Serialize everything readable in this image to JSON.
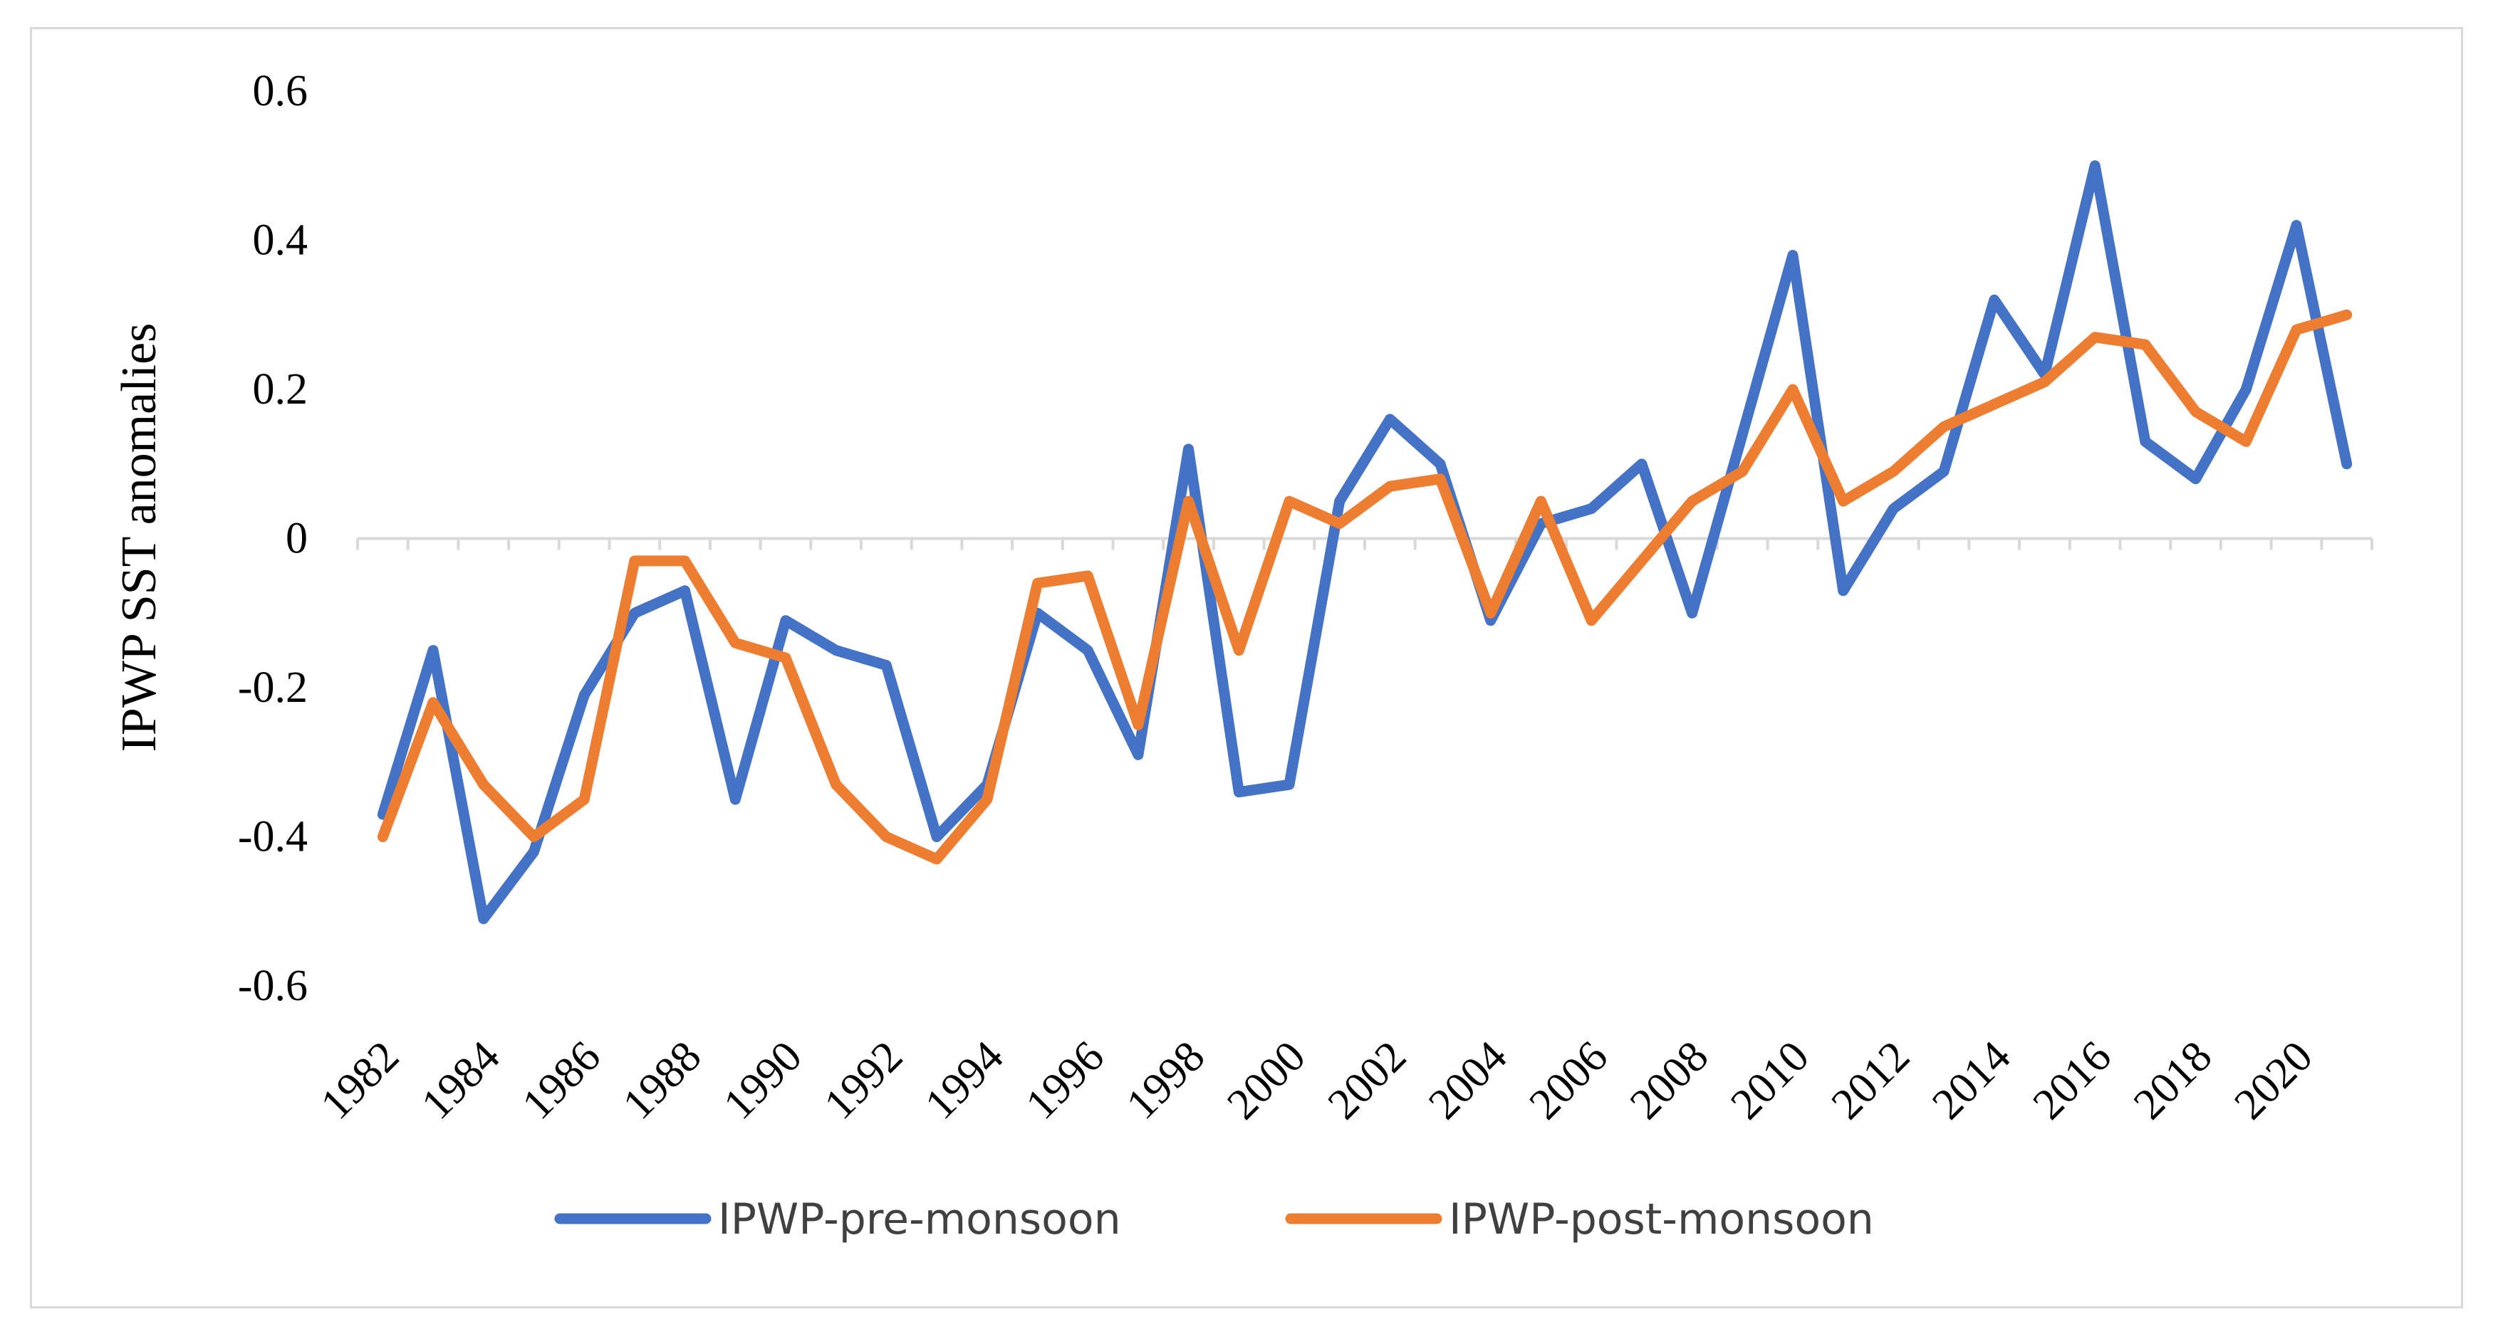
{
  "chart_data": {
    "type": "line",
    "title": "",
    "xlabel": "",
    "ylabel": "IPWP SST anomalies",
    "ylim": [
      -0.6,
      0.6
    ],
    "yticks": [
      -0.6,
      -0.4,
      -0.2,
      0,
      0.2,
      0.4,
      0.6
    ],
    "ytick_labels": [
      "-0.6",
      "-0.4",
      "-0.2",
      "0",
      "0.2",
      "0.4",
      "0.6"
    ],
    "x": [
      1982,
      1983,
      1984,
      1985,
      1986,
      1987,
      1988,
      1989,
      1990,
      1991,
      1992,
      1993,
      1994,
      1995,
      1996,
      1997,
      1998,
      1999,
      2000,
      2001,
      2002,
      2003,
      2004,
      2005,
      2006,
      2007,
      2008,
      2009,
      2010,
      2011,
      2012,
      2013,
      2014,
      2015,
      2016,
      2017,
      2018,
      2019,
      2020,
      2021
    ],
    "xtick_labels": [
      "1982",
      "1984",
      "1986",
      "1988",
      "1990",
      "1992",
      "1994",
      "1996",
      "1998",
      "2000",
      "2002",
      "2004",
      "2006",
      "2008",
      "2010",
      "2012",
      "2014",
      "2016",
      "2018",
      "2020"
    ],
    "grid": false,
    "legend_position": "bottom",
    "series": [
      {
        "name": "IPWP-pre-monsoon",
        "color": "#4472c4",
        "values": [
          -0.37,
          -0.15,
          -0.51,
          -0.42,
          -0.21,
          -0.1,
          -0.07,
          -0.35,
          -0.11,
          -0.15,
          -0.17,
          -0.4,
          -0.33,
          -0.1,
          -0.15,
          -0.29,
          0.12,
          -0.34,
          -0.33,
          0.05,
          0.16,
          0.1,
          -0.11,
          0.02,
          0.04,
          0.1,
          -0.1,
          0.14,
          0.38,
          -0.07,
          0.04,
          0.09,
          0.32,
          0.22,
          0.5,
          0.13,
          0.08,
          0.2,
          0.42,
          0.1
        ]
      },
      {
        "name": "IPWP-post-monsoon",
        "color": "#ed7d31",
        "values": [
          -0.4,
          -0.22,
          -0.33,
          -0.4,
          -0.35,
          -0.03,
          -0.03,
          -0.14,
          -0.16,
          -0.33,
          -0.4,
          -0.43,
          -0.35,
          -0.06,
          -0.05,
          -0.25,
          0.05,
          -0.15,
          0.05,
          0.02,
          0.07,
          0.08,
          -0.1,
          0.05,
          -0.11,
          -0.03,
          0.05,
          0.09,
          0.2,
          0.05,
          0.09,
          0.15,
          0.18,
          0.21,
          0.27,
          0.26,
          0.17,
          0.13,
          0.28,
          0.3
        ]
      }
    ]
  }
}
